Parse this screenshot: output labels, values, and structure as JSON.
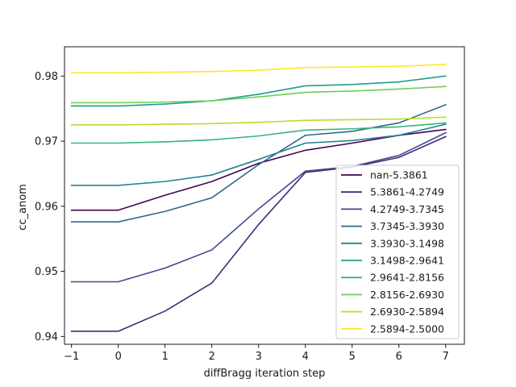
{
  "chart_data": {
    "type": "line",
    "title": "",
    "xlabel": "diffBragg iteration step",
    "ylabel": "cc_anom",
    "xlim": [
      -1.15,
      7.4
    ],
    "ylim": [
      0.9388,
      0.9845
    ],
    "x_ticks": [
      -1,
      0,
      1,
      2,
      3,
      4,
      5,
      6,
      7
    ],
    "x_tick_labels": [
      "−1",
      "0",
      "1",
      "2",
      "3",
      "4",
      "5",
      "6",
      "7"
    ],
    "y_ticks": [
      0.94,
      0.95,
      0.96,
      0.97,
      0.98
    ],
    "y_tick_labels": [
      "0.94",
      "0.95",
      "0.96",
      "0.97",
      "0.98"
    ],
    "grid": false,
    "legend_position": "lower-right",
    "x": [
      -1,
      0,
      1,
      2,
      3,
      4,
      5,
      6,
      7
    ],
    "series": [
      {
        "name": "nan-5.3861",
        "color": "#440154",
        "values": [
          0.9594,
          0.9594,
          0.9617,
          0.9638,
          0.9666,
          0.9686,
          0.9697,
          0.9709,
          0.9718
        ]
      },
      {
        "name": "5.3861-4.2749",
        "color": "#482878",
        "values": [
          0.9408,
          0.9408,
          0.9439,
          0.9482,
          0.9572,
          0.9652,
          0.966,
          0.9675,
          0.9707
        ]
      },
      {
        "name": "4.2749-3.7345",
        "color": "#3e4989",
        "values": [
          0.9484,
          0.9484,
          0.9505,
          0.9533,
          0.9596,
          0.9654,
          0.9661,
          0.9678,
          0.9713
        ]
      },
      {
        "name": "3.7345-3.3930",
        "color": "#31688e",
        "values": [
          0.9576,
          0.9576,
          0.9592,
          0.9613,
          0.9664,
          0.9709,
          0.9715,
          0.9728,
          0.9756
        ]
      },
      {
        "name": "3.3930-3.1498",
        "color": "#26828e",
        "values": [
          0.9632,
          0.9632,
          0.9638,
          0.9648,
          0.9672,
          0.9697,
          0.9701,
          0.9709,
          0.9726
        ]
      },
      {
        "name": "3.1498-2.9641",
        "color": "#1f9e89",
        "values": [
          0.9754,
          0.9754,
          0.9757,
          0.9762,
          0.9772,
          0.9785,
          0.9787,
          0.9791,
          0.98
        ]
      },
      {
        "name": "2.9641-2.8156",
        "color": "#35b779",
        "values": [
          0.9697,
          0.9697,
          0.9699,
          0.9702,
          0.9708,
          0.9717,
          0.9719,
          0.9722,
          0.9728
        ]
      },
      {
        "name": "2.8156-2.6930",
        "color": "#6ece58",
        "values": [
          0.9759,
          0.9759,
          0.976,
          0.9762,
          0.9768,
          0.9775,
          0.9777,
          0.978,
          0.9784
        ]
      },
      {
        "name": "2.6930-2.5894",
        "color": "#b5de2b",
        "values": [
          0.9725,
          0.9725,
          0.9726,
          0.9727,
          0.9729,
          0.9732,
          0.9733,
          0.9734,
          0.9737
        ]
      },
      {
        "name": "2.5894-2.5000",
        "color": "#fde725",
        "values": [
          0.9805,
          0.9805,
          0.9806,
          0.9807,
          0.9809,
          0.9813,
          0.9814,
          0.9815,
          0.9818
        ]
      }
    ]
  }
}
